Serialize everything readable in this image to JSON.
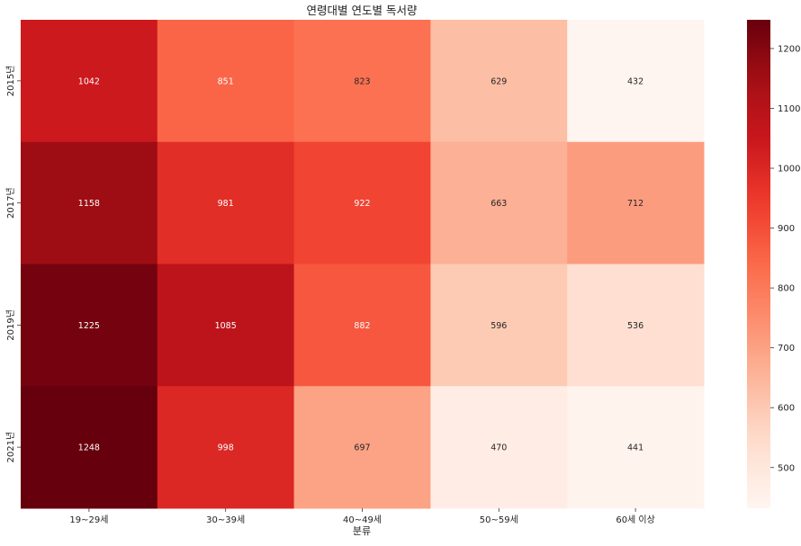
{
  "chart_data": {
    "type": "heatmap",
    "title": "연령대별 연도별 독서량",
    "xlabel": "분류",
    "ylabel": "",
    "x_categories": [
      "19~29세",
      "30~39세",
      "40~49세",
      "50~59세",
      "60세 이상"
    ],
    "y_categories": [
      "2015년",
      "2017년",
      "2019년",
      "2021년"
    ],
    "values": [
      [
        1042,
        851,
        823,
        629,
        432
      ],
      [
        1158,
        981,
        922,
        663,
        712
      ],
      [
        1225,
        1085,
        882,
        596,
        536
      ],
      [
        1248,
        998,
        697,
        470,
        441
      ]
    ],
    "colormap": "Reds",
    "vmin": 432,
    "vmax": 1248,
    "colorbar_ticks": [
      500,
      600,
      700,
      800,
      900,
      1000,
      1100,
      1200
    ],
    "annotations": true,
    "grid": false
  }
}
